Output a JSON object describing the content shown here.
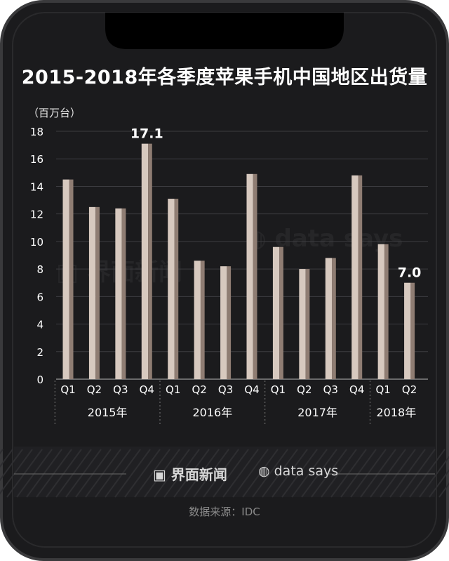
{
  "title": "2015-2018年各季度苹果手机中国地区出货量",
  "unit": "（百万台）",
  "source": "数据来源：IDC",
  "brands": {
    "jiemian": "界面新闻",
    "datasays": "data says"
  },
  "colors": {
    "background": "#1b1b1d",
    "frame": "#3a3a3c",
    "bar_light": "#d7c9bf",
    "bar_dark": "#8f7d73",
    "grid": "#3c3c40",
    "text": "#ffffff"
  },
  "chart_data": {
    "type": "bar",
    "title": "2015-2018年各季度苹果手机中国地区出货量",
    "ylabel": "（百万台）",
    "xlabel": "",
    "ylim": [
      0,
      18
    ],
    "yticks": [
      0,
      2,
      4,
      6,
      8,
      10,
      12,
      14,
      16,
      18
    ],
    "categories": [
      "Q1",
      "Q2",
      "Q3",
      "Q4",
      "Q1",
      "Q2",
      "Q3",
      "Q4",
      "Q1",
      "Q2",
      "Q3",
      "Q4",
      "Q1",
      "Q2"
    ],
    "groups": [
      {
        "label": "2015年",
        "count": 4
      },
      {
        "label": "2016年",
        "count": 4
      },
      {
        "label": "2017年",
        "count": 4
      },
      {
        "label": "2018年",
        "count": 2
      }
    ],
    "values": [
      14.5,
      12.5,
      12.4,
      17.1,
      13.1,
      8.6,
      8.2,
      14.9,
      9.6,
      8.0,
      8.8,
      14.8,
      9.8,
      7.0
    ],
    "annotations": [
      {
        "index": 3,
        "text": "17.1"
      },
      {
        "index": 13,
        "text": "7.0"
      }
    ],
    "grid": true
  }
}
